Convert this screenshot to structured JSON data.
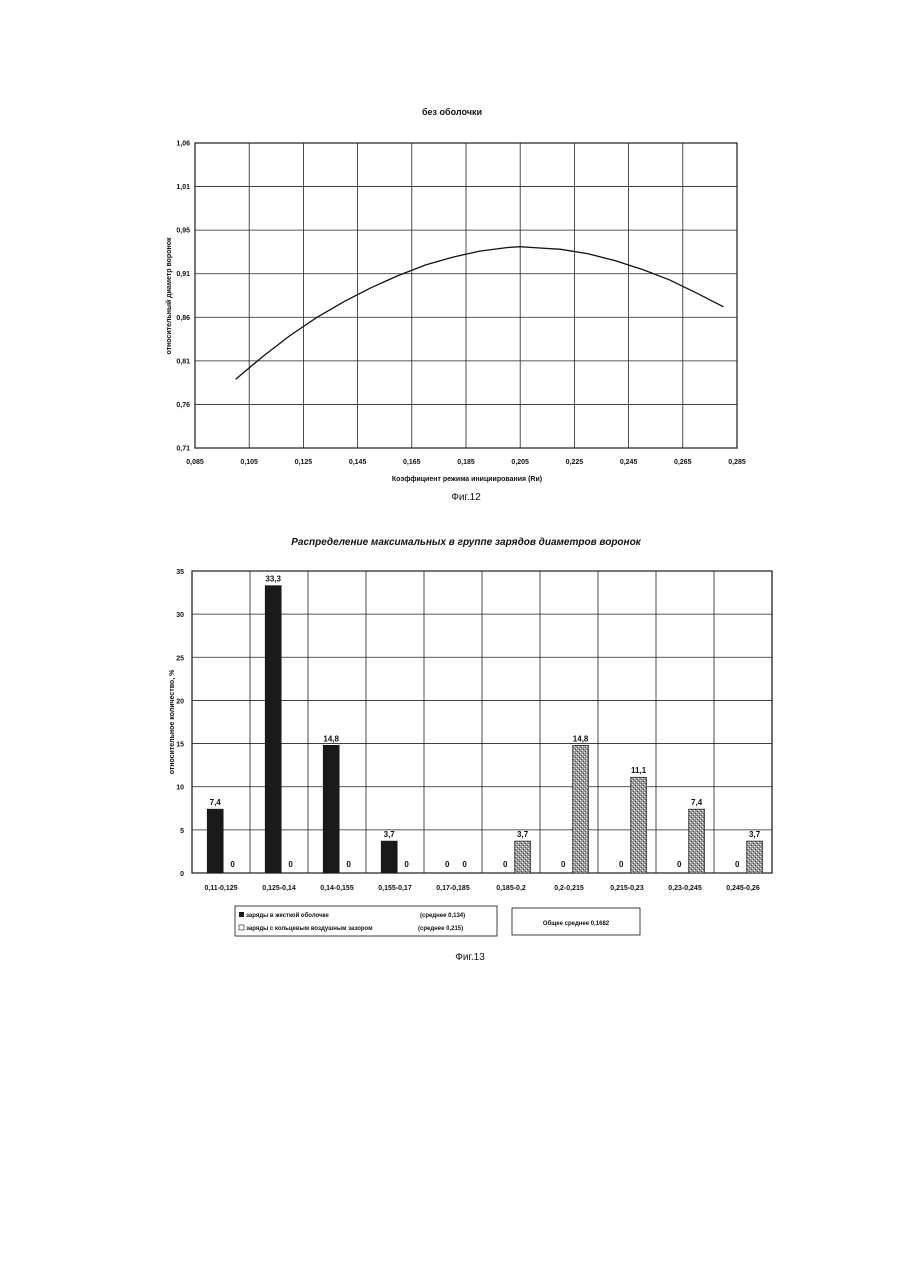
{
  "figure12": {
    "caption": "Фиг.12",
    "chart_data": {
      "type": "line",
      "title": "без оболочки",
      "xlabel": "Коэффициент режима инициирования (Rи)",
      "ylabel": "относительный диаметр воронок",
      "xlim": [
        0.085,
        0.285
      ],
      "ylim": [
        0.71,
        1.06
      ],
      "x_ticks": [
        "0,085",
        "0,105",
        "0,125",
        "0,145",
        "0,165",
        "0,185",
        "0,205",
        "0,225",
        "0,245",
        "0,265",
        "0,285"
      ],
      "y_ticks": [
        "0,71",
        "0,76",
        "0,81",
        "0,86",
        "0,91",
        "0,95",
        "1,01",
        "1,06"
      ],
      "grid": true,
      "series": [
        {
          "x": [
            0.1,
            0.11,
            0.12,
            0.13,
            0.14,
            0.15,
            0.16,
            0.17,
            0.18,
            0.19,
            0.2,
            0.205,
            0.21,
            0.22,
            0.23,
            0.24,
            0.25,
            0.26,
            0.27,
            0.28
          ],
          "y": [
            0.789,
            0.815,
            0.839,
            0.86,
            0.878,
            0.894,
            0.908,
            0.92,
            0.929,
            0.936,
            0.94,
            0.941,
            0.94,
            0.938,
            0.933,
            0.925,
            0.915,
            0.903,
            0.888,
            0.872
          ]
        }
      ]
    }
  },
  "figure13": {
    "caption": "Фиг.13",
    "chart_data": {
      "type": "bar",
      "title": "Распределение максимальных в группе зарядов диаметров воронок",
      "xlabel": "",
      "ylabel": "относительное количество, %",
      "ylim": [
        0,
        35
      ],
      "y_ticks": [
        "0",
        "5",
        "10",
        "15",
        "20",
        "25",
        "30",
        "35"
      ],
      "grid": true,
      "categories": [
        "0,11-0,125",
        "0,125-0,14",
        "0,14-0,155",
        "0,155-0,17",
        "0,17-0,185",
        "0,185-0,2",
        "0,2-0,215",
        "0,215-0,23",
        "0,23-0,245",
        "0,245-0,26"
      ],
      "series": [
        {
          "name": "заряды в жесткой оболочке",
          "values": [
            7.4,
            33.3,
            14.8,
            3.7,
            0,
            0,
            0,
            0,
            0,
            0
          ],
          "labels": [
            "7,4",
            "33,3",
            "14,8",
            "3,7",
            "0",
            "0",
            "0",
            "0",
            "0",
            "0"
          ],
          "color": "#1a1a1a"
        },
        {
          "name": "заряды с кольцевым воздушным зазором",
          "values": [
            0,
            0,
            0,
            0,
            0,
            3.7,
            14.8,
            11.1,
            7.4,
            3.7
          ],
          "labels": [
            "0",
            "0",
            "0",
            "0",
            "0",
            "3,7",
            "14,8",
            "11,1",
            "7,4",
            "3,7"
          ],
          "color": "#8a8a8a"
        }
      ],
      "legend": {
        "placement": "bottom",
        "items": [
          {
            "text": "заряды в жесткой оболочке",
            "note": "(среднее 0,134)"
          },
          {
            "text": "заряды с кольцевым воздушным зазором",
            "note": "(среднее 0,215)"
          }
        ],
        "overall": "Общее среднее 0,1682"
      }
    }
  }
}
